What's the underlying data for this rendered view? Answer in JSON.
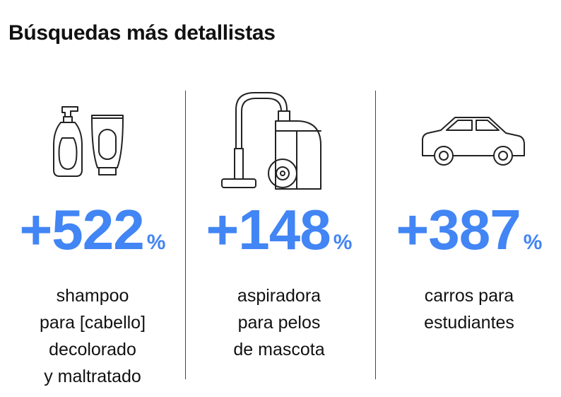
{
  "title": "Búsquedas más detallistas",
  "items": [
    {
      "value": "+522",
      "unit": "%",
      "lines": [
        "shampoo",
        "para [cabello]",
        "decolorado",
        "y maltratado"
      ]
    },
    {
      "value": "+148",
      "unit": "%",
      "lines": [
        "aspiradora",
        "para pelos",
        "de mascota"
      ]
    },
    {
      "value": "+387",
      "unit": "%",
      "lines": [
        "carros para",
        "estudiantes"
      ]
    }
  ]
}
